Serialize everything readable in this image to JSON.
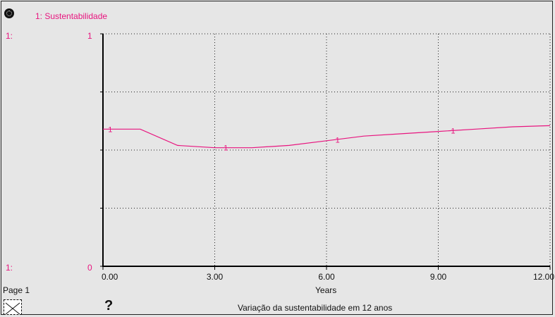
{
  "graph": {
    "legend": "1: Sustentabilidade",
    "scale_max_label": "1:",
    "scale_min_label": "1:",
    "ymax_tick": "1",
    "ymin_tick": "0",
    "page_label": "Page 1",
    "help_icon": "?",
    "caption": "Variação da sustentabilidade em 12 anos"
  },
  "chart_data": {
    "type": "line",
    "title": "",
    "xlabel": "Years",
    "ylabel": "",
    "xlim": [
      0,
      12
    ],
    "ylim": [
      0,
      1
    ],
    "x_ticks": [
      0,
      3,
      6,
      9,
      12
    ],
    "x_tick_labels": [
      "0.00",
      "3.00",
      "6.00",
      "9.00",
      "12.00"
    ],
    "y_ticks": [
      0,
      0.25,
      0.5,
      0.75,
      1
    ],
    "grid": true,
    "grid_style": "dotted",
    "line_color": "#e8157f",
    "series": [
      {
        "name": "Sustentabilidade",
        "marker_label": "1",
        "x": [
          0,
          1,
          2,
          3,
          4,
          5,
          6,
          7,
          8,
          9,
          10,
          11,
          12
        ],
        "y": [
          0.59,
          0.59,
          0.52,
          0.51,
          0.51,
          0.52,
          0.54,
          0.56,
          0.57,
          0.58,
          0.59,
          0.6,
          0.605
        ]
      }
    ],
    "marker_x": [
      0.1,
      3.2,
      6.2,
      9.3
    ]
  }
}
